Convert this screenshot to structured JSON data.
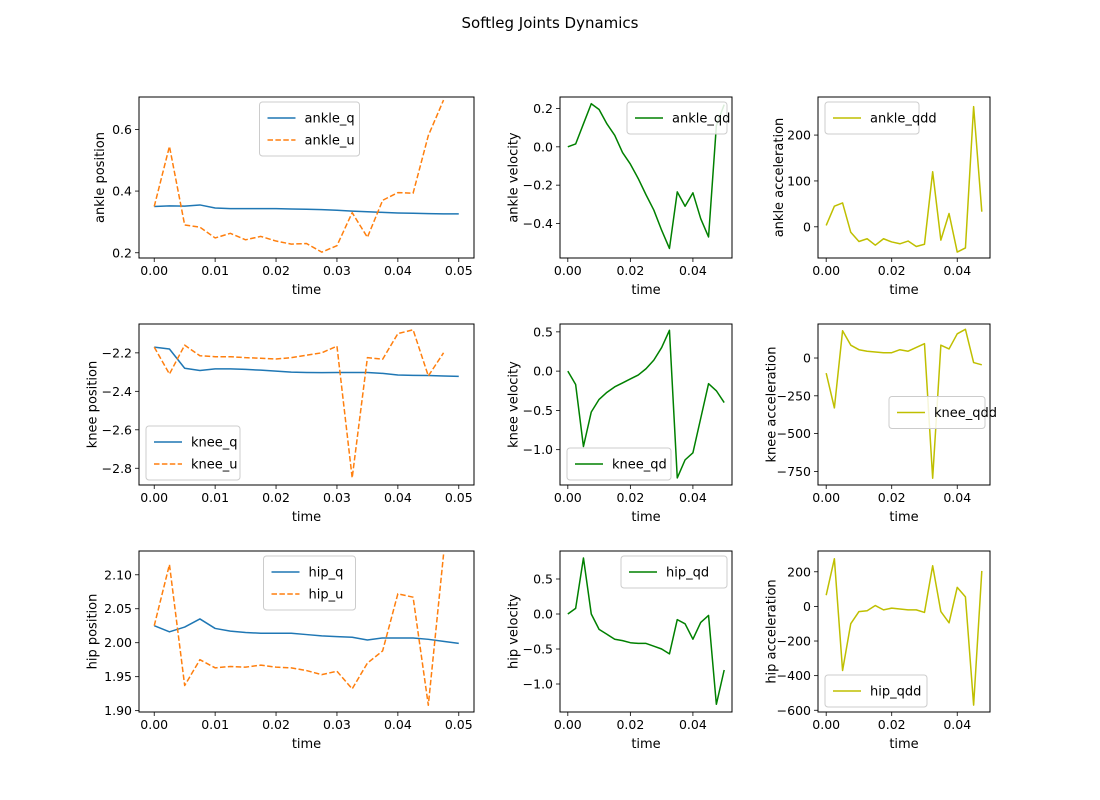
{
  "figure": {
    "title": "Softleg Joints Dynamics"
  },
  "chart_data": [
    {
      "type": "line",
      "xlabel": "time",
      "ylabel": "ankle position",
      "xlim": [
        -0.0025,
        0.0525
      ],
      "ylim": [
        0.183,
        0.705
      ],
      "xticks": [
        "0.00",
        "0.01",
        "0.02",
        "0.03",
        "0.04",
        "0.05"
      ],
      "xtick_values": [
        0,
        0.01,
        0.02,
        0.03,
        0.04,
        0.05
      ],
      "yticks": [
        "0.2",
        "0.4",
        "0.6"
      ],
      "ytick_values": [
        0.2,
        0.4,
        0.6
      ],
      "legend": "upper center",
      "series": [
        {
          "name": "ankle_q",
          "color": "#1f77b4",
          "dash": "solid",
          "x": [
            0,
            0.0025,
            0.005,
            0.0075,
            0.01,
            0.0125,
            0.015,
            0.0175,
            0.02,
            0.0225,
            0.025,
            0.0275,
            0.03,
            0.0325,
            0.035,
            0.0375,
            0.04,
            0.0425,
            0.045,
            0.0475,
            0.05
          ],
          "y": [
            0.35,
            0.352,
            0.351,
            0.355,
            0.345,
            0.343,
            0.343,
            0.343,
            0.343,
            0.342,
            0.341,
            0.34,
            0.338,
            0.335,
            0.333,
            0.331,
            0.329,
            0.328,
            0.327,
            0.326,
            0.326
          ]
        },
        {
          "name": "ankle_u",
          "color": "#ff7f0e",
          "dash": "dashed",
          "x": [
            0,
            0.0025,
            0.005,
            0.0075,
            0.01,
            0.0125,
            0.015,
            0.0175,
            0.02,
            0.0225,
            0.025,
            0.0275,
            0.03,
            0.0325,
            0.035,
            0.0375,
            0.04,
            0.0425,
            0.045,
            0.0475
          ],
          "y": [
            0.35,
            0.545,
            0.29,
            0.283,
            0.248,
            0.263,
            0.242,
            0.253,
            0.238,
            0.228,
            0.23,
            0.202,
            0.223,
            0.33,
            0.25,
            0.37,
            0.395,
            0.393,
            0.58,
            0.695
          ]
        }
      ]
    },
    {
      "type": "line",
      "xlabel": "time",
      "ylabel": "ankle velocity",
      "xlim": [
        -0.0025,
        0.0525
      ],
      "ylim": [
        -0.58,
        0.26
      ],
      "xticks": [
        "0.00",
        "0.02",
        "0.04"
      ],
      "xtick_values": [
        0,
        0.02,
        0.04
      ],
      "yticks": [
        "−0.4",
        "−0.2",
        "0.0",
        "0.2"
      ],
      "ytick_values": [
        -0.4,
        -0.2,
        0,
        0.2
      ],
      "legend": "upper right",
      "series": [
        {
          "name": "ankle_qd",
          "color": "#008000",
          "dash": "solid",
          "x": [
            0,
            0.0025,
            0.005,
            0.0075,
            0.01,
            0.0125,
            0.015,
            0.0175,
            0.02,
            0.0225,
            0.025,
            0.0275,
            0.03,
            0.0325,
            0.035,
            0.0375,
            0.04,
            0.0425,
            0.045,
            0.0475,
            0.05
          ],
          "y": [
            0.0,
            0.015,
            0.12,
            0.225,
            0.195,
            0.12,
            0.06,
            -0.03,
            -0.09,
            -0.165,
            -0.25,
            -0.33,
            -0.435,
            -0.53,
            -0.235,
            -0.31,
            -0.24,
            -0.375,
            -0.47,
            0.11,
            0.22
          ]
        }
      ]
    },
    {
      "type": "line",
      "xlabel": "time",
      "ylabel": "ankle acceleration",
      "xlim": [
        -0.0025,
        0.05
      ],
      "ylim": [
        -68,
        283
      ],
      "xticks": [
        "0.00",
        "0.02",
        "0.04"
      ],
      "xtick_values": [
        0,
        0.02,
        0.04
      ],
      "yticks": [
        "0",
        "100",
        "200"
      ],
      "ytick_values": [
        0,
        100,
        200
      ],
      "legend": "upper left",
      "series": [
        {
          "name": "ankle_qdd",
          "color": "#bfbf00",
          "dash": "solid",
          "x": [
            0,
            0.0025,
            0.005,
            0.0075,
            0.01,
            0.0125,
            0.015,
            0.0175,
            0.02,
            0.0225,
            0.025,
            0.0275,
            0.03,
            0.0325,
            0.035,
            0.0375,
            0.04,
            0.0425,
            0.045,
            0.0475
          ],
          "y": [
            3,
            45,
            52,
            -12,
            -32,
            -26,
            -40,
            -26,
            -33,
            -37,
            -31,
            -43,
            -38,
            120,
            -29,
            29,
            -55,
            -46,
            262,
            33
          ]
        }
      ]
    },
    {
      "type": "line",
      "xlabel": "time",
      "ylabel": "knee position",
      "xlim": [
        -0.0025,
        0.0525
      ],
      "ylim": [
        -2.887,
        -2.05
      ],
      "xticks": [
        "0.00",
        "0.01",
        "0.02",
        "0.03",
        "0.04",
        "0.05"
      ],
      "xtick_values": [
        0,
        0.01,
        0.02,
        0.03,
        0.04,
        0.05
      ],
      "yticks": [
        "−2.8",
        "−2.6",
        "−2.4",
        "−2.2"
      ],
      "ytick_values": [
        -2.8,
        -2.6,
        -2.4,
        -2.2
      ],
      "legend": "lower left",
      "series": [
        {
          "name": "knee_q",
          "color": "#1f77b4",
          "dash": "solid",
          "x": [
            0,
            0.0025,
            0.005,
            0.0075,
            0.01,
            0.0125,
            0.015,
            0.0175,
            0.02,
            0.0225,
            0.025,
            0.0275,
            0.03,
            0.0325,
            0.035,
            0.0375,
            0.04,
            0.0425,
            0.045,
            0.0475,
            0.05
          ],
          "y": [
            -2.17,
            -2.18,
            -2.28,
            -2.292,
            -2.283,
            -2.283,
            -2.286,
            -2.29,
            -2.295,
            -2.3,
            -2.302,
            -2.303,
            -2.302,
            -2.302,
            -2.302,
            -2.307,
            -2.315,
            -2.317,
            -2.318,
            -2.32,
            -2.322
          ]
        },
        {
          "name": "knee_u",
          "color": "#ff7f0e",
          "dash": "dashed",
          "x": [
            0,
            0.0025,
            0.005,
            0.0075,
            0.01,
            0.0125,
            0.015,
            0.0175,
            0.02,
            0.0225,
            0.025,
            0.0275,
            0.03,
            0.0325,
            0.035,
            0.0375,
            0.04,
            0.0425,
            0.045,
            0.0475
          ],
          "y": [
            -2.17,
            -2.31,
            -2.16,
            -2.215,
            -2.22,
            -2.22,
            -2.225,
            -2.228,
            -2.232,
            -2.225,
            -2.212,
            -2.2,
            -2.165,
            -2.85,
            -2.225,
            -2.233,
            -2.1,
            -2.08,
            -2.32,
            -2.2
          ]
        }
      ]
    },
    {
      "type": "line",
      "xlabel": "time",
      "ylabel": "knee velocity",
      "xlim": [
        -0.0025,
        0.0525
      ],
      "ylim": [
        -1.45,
        0.6
      ],
      "xticks": [
        "0.00",
        "0.02",
        "0.04"
      ],
      "xtick_values": [
        0,
        0.02,
        0.04
      ],
      "yticks": [
        "−1.0",
        "−0.5",
        "0.0",
        "0.5"
      ],
      "ytick_values": [
        -1.0,
        -0.5,
        0,
        0.5
      ],
      "legend": "lower left",
      "series": [
        {
          "name": "knee_qd",
          "color": "#008000",
          "dash": "solid",
          "x": [
            0,
            0.0025,
            0.005,
            0.0075,
            0.01,
            0.0125,
            0.015,
            0.0175,
            0.02,
            0.0225,
            0.025,
            0.0275,
            0.03,
            0.0325,
            0.035,
            0.0375,
            0.04,
            0.0425,
            0.045,
            0.0475,
            0.05
          ],
          "y": [
            0.0,
            -0.17,
            -0.96,
            -0.52,
            -0.36,
            -0.27,
            -0.2,
            -0.15,
            -0.1,
            -0.05,
            0.03,
            0.14,
            0.3,
            0.52,
            -1.36,
            -1.13,
            -1.04,
            -0.6,
            -0.16,
            -0.25,
            -0.4
          ]
        }
      ]
    },
    {
      "type": "line",
      "xlabel": "time",
      "ylabel": "knee acceleration",
      "xlim": [
        -0.0025,
        0.05
      ],
      "ylim": [
        -840,
        225
      ],
      "xticks": [
        "0.00",
        "0.02",
        "0.04"
      ],
      "xtick_values": [
        0,
        0.02,
        0.04
      ],
      "yticks": [
        "−750",
        "−500",
        "−250",
        "0"
      ],
      "ytick_values": [
        -750,
        -500,
        -250,
        0
      ],
      "legend": "center right",
      "series": [
        {
          "name": "knee_qdd",
          "color": "#bfbf00",
          "dash": "solid",
          "x": [
            0,
            0.0025,
            0.005,
            0.0075,
            0.01,
            0.0125,
            0.015,
            0.0175,
            0.02,
            0.0225,
            0.025,
            0.0275,
            0.03,
            0.0325,
            0.035,
            0.0375,
            0.04,
            0.0425,
            0.045,
            0.0475
          ],
          "y": [
            -100,
            -330,
            180,
            85,
            55,
            45,
            40,
            35,
            35,
            55,
            45,
            70,
            95,
            -795,
            85,
            60,
            160,
            190,
            -30,
            -45
          ]
        }
      ]
    },
    {
      "type": "line",
      "xlabel": "time",
      "ylabel": "hip position",
      "xlim": [
        -0.0025,
        0.0525
      ],
      "ylim": [
        1.898,
        2.135
      ],
      "xticks": [
        "0.00",
        "0.01",
        "0.02",
        "0.03",
        "0.04",
        "0.05"
      ],
      "xtick_values": [
        0,
        0.01,
        0.02,
        0.03,
        0.04,
        0.05
      ],
      "yticks": [
        "1.90",
        "1.95",
        "2.00",
        "2.05",
        "2.10"
      ],
      "ytick_values": [
        1.9,
        1.95,
        2.0,
        2.05,
        2.1
      ],
      "legend": "upper center",
      "series": [
        {
          "name": "hip_q",
          "color": "#1f77b4",
          "dash": "solid",
          "x": [
            0,
            0.0025,
            0.005,
            0.0075,
            0.01,
            0.0125,
            0.015,
            0.0175,
            0.02,
            0.0225,
            0.025,
            0.0275,
            0.03,
            0.0325,
            0.035,
            0.0375,
            0.04,
            0.0425,
            0.045,
            0.0475,
            0.05
          ],
          "y": [
            2.025,
            2.016,
            2.023,
            2.035,
            2.021,
            2.017,
            2.015,
            2.014,
            2.014,
            2.014,
            2.012,
            2.01,
            2.009,
            2.008,
            2.004,
            2.007,
            2.007,
            2.007,
            2.005,
            2.002,
            1.999
          ]
        },
        {
          "name": "hip_u",
          "color": "#ff7f0e",
          "dash": "dashed",
          "x": [
            0,
            0.0025,
            0.005,
            0.0075,
            0.01,
            0.0125,
            0.015,
            0.0175,
            0.02,
            0.0225,
            0.025,
            0.0275,
            0.03,
            0.0325,
            0.035,
            0.0375,
            0.04,
            0.0425,
            0.045,
            0.0475
          ],
          "y": [
            2.025,
            2.115,
            1.937,
            1.975,
            1.963,
            1.965,
            1.964,
            1.967,
            1.964,
            1.963,
            1.959,
            1.953,
            1.958,
            1.932,
            1.97,
            1.988,
            2.072,
            2.067,
            1.908,
            2.13
          ]
        }
      ]
    },
    {
      "type": "line",
      "xlabel": "time",
      "ylabel": "hip velocity",
      "xlim": [
        -0.0025,
        0.0525
      ],
      "ylim": [
        -1.4,
        0.9
      ],
      "xticks": [
        "0.00",
        "0.02",
        "0.04"
      ],
      "xtick_values": [
        0,
        0.02,
        0.04
      ],
      "yticks": [
        "−1.0",
        "−0.5",
        "0.0",
        "0.5"
      ],
      "ytick_values": [
        -1.0,
        -0.5,
        0,
        0.5
      ],
      "legend": "upper right",
      "series": [
        {
          "name": "hip_qd",
          "color": "#008000",
          "dash": "solid",
          "x": [
            0,
            0.0025,
            0.005,
            0.0075,
            0.01,
            0.0125,
            0.015,
            0.0175,
            0.02,
            0.0225,
            0.025,
            0.0275,
            0.03,
            0.0325,
            0.035,
            0.0375,
            0.04,
            0.0425,
            0.045,
            0.0475,
            0.05
          ],
          "y": [
            0.0,
            0.08,
            0.8,
            0.0,
            -0.22,
            -0.29,
            -0.36,
            -0.38,
            -0.41,
            -0.42,
            -0.42,
            -0.46,
            -0.5,
            -0.57,
            -0.08,
            -0.14,
            -0.36,
            -0.12,
            -0.02,
            -1.29,
            -0.8
          ]
        }
      ]
    },
    {
      "type": "line",
      "xlabel": "time",
      "ylabel": "hip acceleration",
      "xlim": [
        -0.0025,
        0.05
      ],
      "ylim": [
        -610,
        320
      ],
      "xticks": [
        "0.00",
        "0.02",
        "0.04"
      ],
      "xtick_values": [
        0,
        0.02,
        0.04
      ],
      "yticks": [
        "−600",
        "−400",
        "−200",
        "0",
        "200"
      ],
      "ytick_values": [
        -600,
        -400,
        -200,
        0,
        200
      ],
      "legend": "lower left",
      "series": [
        {
          "name": "hip_qdd",
          "color": "#bfbf00",
          "dash": "solid",
          "x": [
            0,
            0.0025,
            0.005,
            0.0075,
            0.01,
            0.0125,
            0.015,
            0.0175,
            0.02,
            0.0225,
            0.025,
            0.0275,
            0.03,
            0.0325,
            0.035,
            0.0375,
            0.04,
            0.0425,
            0.045,
            0.0475
          ],
          "y": [
            65,
            275,
            -370,
            -100,
            -30,
            -25,
            5,
            -20,
            -10,
            -15,
            -20,
            -20,
            -35,
            235,
            -30,
            -95,
            110,
            55,
            -570,
            205
          ]
        }
      ]
    }
  ]
}
